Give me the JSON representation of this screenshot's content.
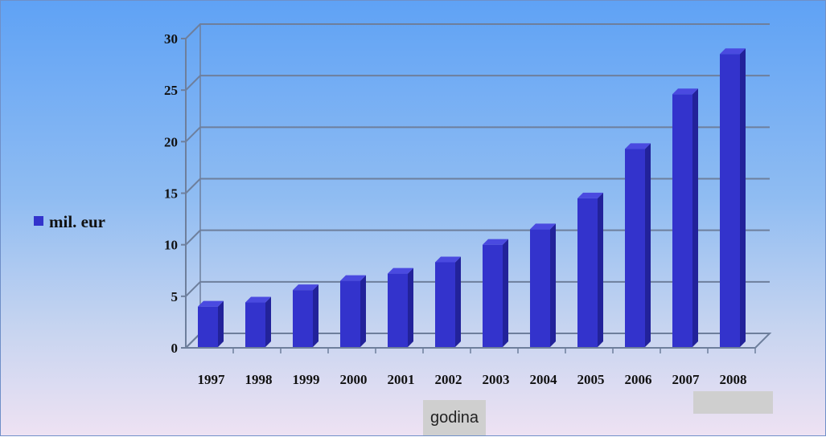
{
  "chart_data": {
    "type": "bar",
    "categories": [
      "1997",
      "1998",
      "1999",
      "2000",
      "2001",
      "2002",
      "2003",
      "2004",
      "2005",
      "2006",
      "2007",
      "2008"
    ],
    "series": [
      {
        "name": "mil. eur",
        "values": [
          4.0,
          4.4,
          5.6,
          6.5,
          7.2,
          8.3,
          10.0,
          11.5,
          14.5,
          19.3,
          24.6,
          28.5
        ]
      }
    ],
    "xlabel": "godina",
    "ylabel": "",
    "ylim": [
      0,
      30
    ],
    "yticks": [
      0,
      5,
      10,
      15,
      20,
      25,
      30
    ],
    "grid": true,
    "legend": "left",
    "colors": {
      "bar_front": "#3333cc",
      "bar_side": "#22229a",
      "bar_top": "#4a4ae0",
      "grid": "#6e7f9c"
    }
  }
}
